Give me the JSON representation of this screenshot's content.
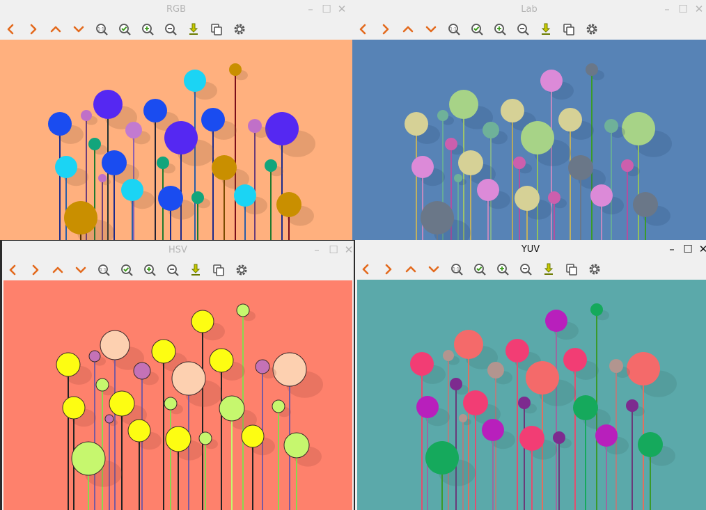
{
  "windows": [
    {
      "id": "rgb",
      "title": "RGB",
      "active": false,
      "bg": "#ffb07e",
      "shadow": "#8a5a3a"
    },
    {
      "id": "lab",
      "title": "Lab",
      "active": false,
      "bg": "#5783b6",
      "shadow": "#2f4f77"
    },
    {
      "id": "hsv",
      "title": "HSV",
      "active": false,
      "bg": "#fe816c",
      "shadow": "#a04a3d"
    },
    {
      "id": "yuv",
      "title": "YUV",
      "active": true,
      "bg": "#5ba9aa",
      "shadow": "#3a7373"
    }
  ],
  "toolbar_icons": [
    "pan-left-icon",
    "pan-right-icon",
    "pan-up-icon",
    "pan-down-icon",
    "zoom-original-icon",
    "zoom-fit-icon",
    "zoom-in-icon",
    "zoom-out-icon",
    "save-image-icon",
    "copy-image-icon",
    "properties-icon"
  ],
  "window_controls": {
    "minimize": "–",
    "maximize": "☐",
    "close": "✕"
  },
  "colors": {
    "icon_orange": "#e36a1d",
    "icon_green": "#3c9a1c",
    "icon_gray": "#555555",
    "icon_yellow": "#c8c800"
  }
}
